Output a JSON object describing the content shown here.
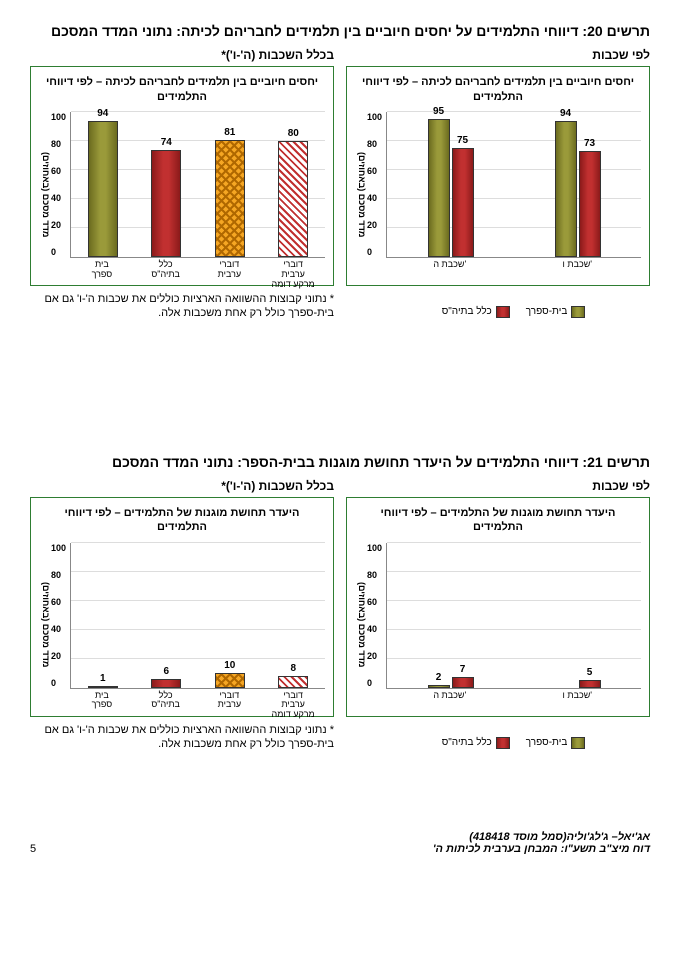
{
  "section1": {
    "title": "תרשים 20: דיווחי התלמידים על יחסים חיוביים בין תלמידים לחבריהם לכיתה: נתוני המדד המסכם",
    "right": {
      "header": "לפי שכבות",
      "subtitle": "יחסים חיוביים בין תלמידים לחבריהם לכיתה – לפי דיווחי התלמידים",
      "border_color": "#2e7d32",
      "ylabel": "מדד מסכם (באחוזים)",
      "ylim": [
        0,
        100
      ],
      "ytick_step": 20,
      "grid_color": "#dddddd",
      "groups": [
        {
          "label": "שכבת ה'",
          "bars": [
            {
              "value": 95,
              "fill": "olive"
            },
            {
              "value": 75,
              "fill": "red"
            }
          ]
        },
        {
          "label": "שכבת ו'",
          "bars": [
            {
              "value": 94,
              "fill": "olive"
            },
            {
              "value": 73,
              "fill": "red"
            }
          ]
        }
      ],
      "legend": [
        {
          "label": "בית-ספרך",
          "fill": "olive"
        },
        {
          "label": "כלל בתיה\"ס",
          "fill": "red"
        }
      ]
    },
    "left": {
      "header": "בכלל השכבות (ה'-ו')*",
      "subtitle": "יחסים חיוביים בין תלמידים לחבריהם לכיתה – לפי דיווחי התלמידים",
      "border_color": "#2e7d32",
      "ylabel": "מדד מסכם (באחוזים)",
      "ylim": [
        0,
        100
      ],
      "ytick_step": 20,
      "grid_color": "#dddddd",
      "singles": [
        {
          "label": "בית\nספרך",
          "value": 94,
          "fill": "olive"
        },
        {
          "label": "כלל\nבתיה\"ס",
          "value": 74,
          "fill": "red"
        },
        {
          "label": "דוברי\nערבית",
          "value": 81,
          "fill": "orange-hatch"
        },
        {
          "label": "דוברי\nערבית\nמרקע דומה",
          "value": 80,
          "fill": "red-hatch"
        }
      ],
      "footnote": "* נתוני קבוצות ההשוואה הארציות כוללים את שכבות ה'-ו' גם אם בית-ספרך כולל רק אחת משכבות אלה."
    }
  },
  "section2": {
    "title": "תרשים 21: דיווחי התלמידים על היעדר תחושת מוגנות בבית-הספר: נתוני המדד המסכם",
    "right": {
      "header": "לפי שכבות",
      "subtitle": "היעדר תחושת מוגנות של התלמידים – לפי דיווחי התלמידים",
      "border_color": "#2e7d32",
      "ylabel": "מדד מסכם (באחוזים)",
      "ylim": [
        0,
        100
      ],
      "ytick_step": 20,
      "grid_color": "#dddddd",
      "groups": [
        {
          "label": "שכבת ה'",
          "bars": [
            {
              "value": 2,
              "fill": "olive"
            },
            {
              "value": 7,
              "fill": "red"
            }
          ]
        },
        {
          "label": "שכבת ו'",
          "bars": [
            {
              "value": null,
              "fill": "olive"
            },
            {
              "value": 5,
              "fill": "red"
            }
          ]
        }
      ],
      "legend": [
        {
          "label": "בית-ספרך",
          "fill": "olive"
        },
        {
          "label": "כלל בתיה\"ס",
          "fill": "red"
        }
      ]
    },
    "left": {
      "header": "בכלל השכבות (ה'-ו')*",
      "subtitle": "היעדר תחושת מוגנות של התלמידים – לפי דיווחי התלמידים",
      "border_color": "#2e7d32",
      "ylabel": "מדד מסכם (באחוזים)",
      "ylim": [
        0,
        100
      ],
      "ytick_step": 20,
      "grid_color": "#dddddd",
      "singles": [
        {
          "label": "בית\nספרך",
          "value": 1,
          "fill": "olive"
        },
        {
          "label": "כלל\nבתיה\"ס",
          "value": 6,
          "fill": "red"
        },
        {
          "label": "דוברי\nערבית",
          "value": 10,
          "fill": "orange-hatch"
        },
        {
          "label": "דוברי\nערבית\nמרקע דומה",
          "value": 8,
          "fill": "red-hatch"
        }
      ],
      "footnote": "* נתוני קבוצות ההשוואה הארציות כוללים את שכבות ה'-ו' גם אם בית-ספרך כולל רק אחת משכבות אלה."
    }
  },
  "footer": {
    "school": "אג'יאל– ג'לג'וליה(סמל מוסד 418418)",
    "report": "דוח מיצ\"ב תשע\"ו: המבחן בערבית לכיתות ה'",
    "page": "5"
  },
  "fills": {
    "olive": {
      "type": "gradient",
      "c1": "#6b6b1f",
      "c2": "#9a9a3a"
    },
    "red": {
      "type": "gradient",
      "c1": "#8b1a1a",
      "c2": "#c13030"
    },
    "orange-hatch": {
      "type": "hatch",
      "bg": "#f5a623",
      "fg": "#b06800",
      "pattern": "vvv"
    },
    "red-hatch": {
      "type": "hatch",
      "bg": "#ffffff",
      "fg": "#c13030",
      "pattern": "diag"
    }
  }
}
